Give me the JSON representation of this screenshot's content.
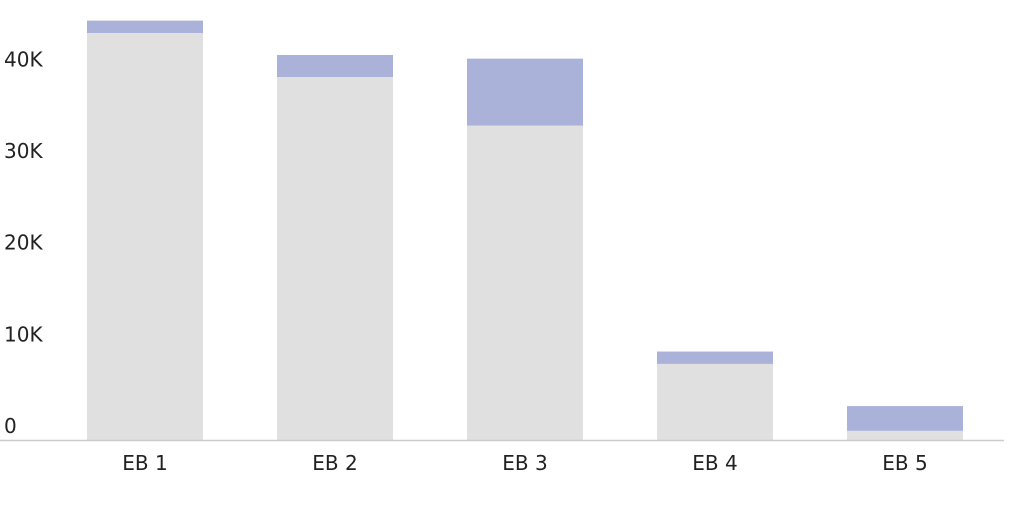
{
  "chart_data": {
    "type": "bar",
    "stacked": true,
    "categories": [
      "EB 1",
      "EB 2",
      "EB 3",
      "EB 4",
      "EB 5"
    ],
    "series": [
      {
        "values": [
          44400,
          39600,
          34300,
          8300,
          1000
        ],
        "color": "#e0e0e0"
      },
      {
        "values": [
          1350,
          2400,
          7300,
          1350,
          2700
        ],
        "color": "#aab2d9"
      }
    ],
    "y_ticks": [
      0,
      10000,
      20000,
      30000,
      40000
    ],
    "y_tick_labels": [
      "0",
      "10K",
      "20K",
      "30K",
      "40K"
    ],
    "ylim": [
      0,
      47500
    ],
    "grid": false,
    "legend": "none",
    "baseline_color": "#cccccc",
    "title": "",
    "xlabel": "",
    "ylabel": ""
  }
}
